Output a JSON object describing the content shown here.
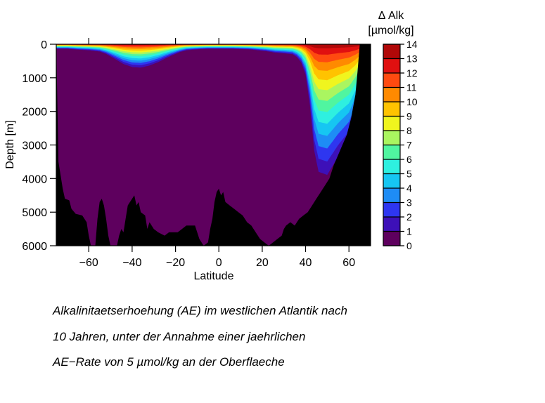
{
  "chart_data": {
    "type": "heatmap",
    "title": "",
    "xlabel": "Latitude",
    "ylabel": "Depth [m]",
    "xlim": [
      -75,
      70
    ],
    "ylim": [
      0,
      6000
    ],
    "y_inverted": true,
    "xticks": [
      -60,
      -40,
      -20,
      0,
      20,
      40,
      60
    ],
    "yticks": [
      0,
      1000,
      2000,
      3000,
      4000,
      5000,
      6000
    ],
    "colorbar": {
      "title_line1": "Δ Alk",
      "title_line2": "[µmol/kg]",
      "levels": [
        0,
        1,
        2,
        3,
        4,
        5,
        6,
        7,
        8,
        9,
        10,
        11,
        12,
        13,
        14
      ],
      "colors": [
        "#5e005e",
        "#3d10b8",
        "#2e36f0",
        "#1e8cf5",
        "#16c6f2",
        "#2ef0e0",
        "#50f5a0",
        "#aaf560",
        "#f0f51e",
        "#ffc300",
        "#ff8a00",
        "#ff4a10",
        "#e01010",
        "#b00808"
      ]
    },
    "surface_max_increase": 14,
    "ocean_interior_value": 0,
    "bathymetry_lat": [
      -75,
      -74,
      -72,
      -71,
      -69,
      -68,
      -66,
      -63,
      -61,
      -60,
      -59,
      -58,
      -57,
      -56,
      -55,
      -54,
      -53,
      -52,
      -51,
      -50,
      -49,
      -48,
      -47,
      -46,
      -45,
      -44,
      -43,
      -42,
      -41,
      -40,
      -39,
      -38,
      -37,
      -36,
      -34,
      -33,
      -32,
      -30,
      -28,
      -25,
      -23,
      -21,
      -19,
      -17,
      -15,
      -13,
      -11,
      -9,
      -7,
      -5,
      -4,
      -3,
      -2,
      -1,
      0,
      1,
      2,
      3,
      5,
      7,
      9,
      11,
      13,
      15,
      17,
      19,
      21,
      23,
      25,
      27,
      29,
      30,
      31,
      33,
      35,
      37,
      39,
      41,
      43,
      45,
      47,
      49,
      51,
      53,
      55,
      57,
      59,
      61,
      63,
      64,
      65,
      66,
      70
    ],
    "bathymetry_depth": [
      0,
      3500,
      4300,
      4600,
      4650,
      4900,
      5050,
      5100,
      5300,
      5700,
      6000,
      6000,
      6000,
      5200,
      4700,
      4600,
      4800,
      5200,
      5700,
      6000,
      6000,
      6000,
      6000,
      5700,
      5500,
      5600,
      5200,
      4800,
      4700,
      4600,
      4500,
      4800,
      4700,
      5000,
      5100,
      5500,
      5300,
      5500,
      5600,
      5700,
      5600,
      5600,
      5600,
      5500,
      5400,
      5400,
      5400,
      5800,
      6000,
      5900,
      5500,
      5200,
      4700,
      4400,
      4300,
      4500,
      4400,
      4700,
      4800,
      4900,
      5000,
      5100,
      5300,
      5400,
      5600,
      5800,
      5900,
      6000,
      5900,
      5800,
      5700,
      5500,
      5400,
      5300,
      5400,
      5200,
      5100,
      5000,
      4800,
      4600,
      4400,
      4200,
      4000,
      3600,
      3300,
      3000,
      2700,
      2200,
      1500,
      800,
      0,
      0,
      0
    ],
    "anomaly_bottom_depth": {
      "lat": [
        -75,
        -73,
        -70,
        -65,
        -60,
        -55,
        -52,
        -48,
        -44,
        -40,
        -36,
        -32,
        -28,
        -25,
        -22,
        -18,
        -15,
        -12,
        -8,
        -5,
        -2,
        0,
        3,
        6,
        10,
        14,
        18,
        22,
        26,
        30,
        34,
        36,
        38,
        40,
        42,
        44,
        46,
        50,
        55,
        60,
        63,
        66,
        70
      ],
      "depth": [
        150,
        150,
        150,
        180,
        200,
        240,
        320,
        480,
        650,
        750,
        770,
        700,
        590,
        480,
        380,
        260,
        200,
        180,
        160,
        150,
        150,
        150,
        150,
        150,
        160,
        170,
        200,
        230,
        280,
        300,
        330,
        420,
        600,
        1000,
        2000,
        3500,
        4200,
        4300,
        3700,
        3200,
        2500,
        1500,
        0
      ]
    }
  },
  "caption": {
    "line1": "Alkalinitaetserhoehung (AE) im westlichen Atlantik nach",
    "line2": "10 Jahren, unter der Annahme einer jaehrlichen",
    "line3": "AE−Rate von 5 µmol/kg an der Oberflaeche"
  }
}
